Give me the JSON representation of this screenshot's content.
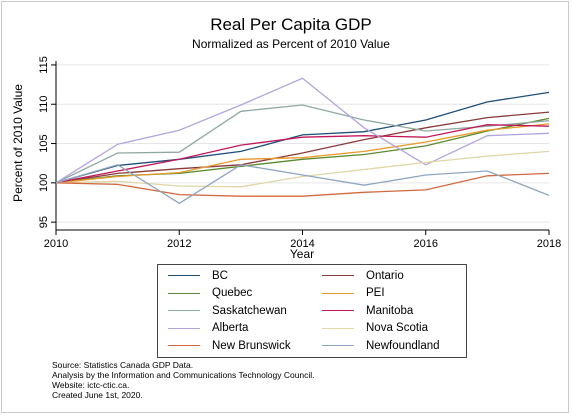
{
  "chart_data": {
    "type": "line",
    "title": "Real Per Capita GDP",
    "subtitle": "Normalized as Percent of 2010 Value",
    "xlabel": "Year",
    "ylabel": "Percent of 2010 Value",
    "x": [
      2010,
      2011,
      2012,
      2013,
      2014,
      2015,
      2016,
      2017,
      2018
    ],
    "xticks": [
      2010,
      2012,
      2014,
      2016,
      2018
    ],
    "yticks": [
      95,
      100,
      105,
      110,
      115
    ],
    "xlim": [
      2010,
      2018
    ],
    "ylim": [
      94,
      115.5
    ],
    "grid": "horizontal",
    "legend_placement": "bottom",
    "series": [
      {
        "name": "BC",
        "color": "#1f4e79",
        "values": [
          100,
          102.2,
          103.0,
          104.0,
          106.1,
          106.5,
          108.0,
          110.3,
          111.5
        ]
      },
      {
        "name": "Ontario",
        "color": "#8b3a3a",
        "values": [
          100,
          101.2,
          101.8,
          102.3,
          103.8,
          105.5,
          107.0,
          108.3,
          109.0
        ]
      },
      {
        "name": "Quebec",
        "color": "#5a8a2e",
        "values": [
          100,
          100.9,
          101.2,
          102.1,
          103.0,
          103.6,
          104.7,
          106.6,
          108.2
        ]
      },
      {
        "name": "PEI",
        "color": "#e89a2c",
        "values": [
          100,
          100.8,
          101.3,
          103.0,
          103.2,
          104.0,
          105.2,
          106.7,
          107.5
        ]
      },
      {
        "name": "Saskatchewan",
        "color": "#8fa8a0",
        "values": [
          100,
          103.8,
          103.9,
          109.1,
          109.9,
          108.0,
          106.6,
          107.2,
          107.9
        ]
      },
      {
        "name": "Manitoba",
        "color": "#c2185b",
        "values": [
          100,
          101.5,
          103.0,
          104.8,
          105.8,
          106.0,
          105.8,
          107.4,
          107.2
        ]
      },
      {
        "name": "Alberta",
        "color": "#b3a4e0",
        "values": [
          100,
          104.9,
          106.7,
          109.9,
          113.3,
          107.0,
          102.3,
          106.0,
          106.3
        ]
      },
      {
        "name": "Nova Scotia",
        "color": "#e0d6a6",
        "values": [
          100,
          100.2,
          99.6,
          99.5,
          100.8,
          101.7,
          102.6,
          103.4,
          104.0
        ]
      },
      {
        "name": "New Brunswick",
        "color": "#d2693e",
        "values": [
          100,
          99.8,
          98.5,
          98.3,
          98.3,
          98.8,
          99.1,
          100.9,
          101.2
        ]
      },
      {
        "name": "Newfoundland",
        "color": "#8fa6c2",
        "values": [
          100,
          102.3,
          97.4,
          102.3,
          101.0,
          99.7,
          101.0,
          101.5,
          98.4
        ]
      }
    ]
  },
  "source_lines": [
    "Source: Statistics Canada GDP Data.",
    "Analysis by the Information and Communications Technology Council.",
    "Website: ictc-ctic.ca.",
    "Created June 1st, 2020."
  ]
}
